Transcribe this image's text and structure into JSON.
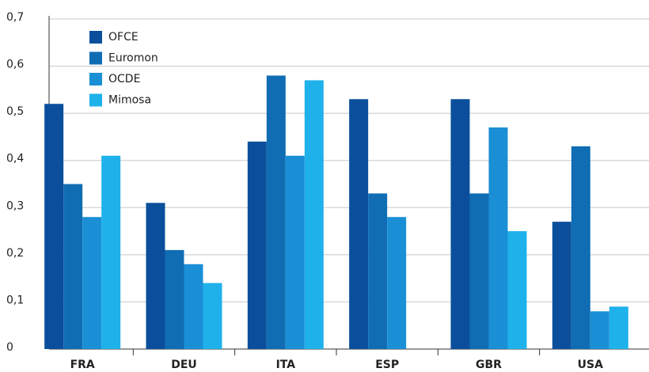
{
  "chart_data": {
    "type": "bar",
    "categories": [
      "FRA",
      "DEU",
      "ITA",
      "ESP",
      "GBR",
      "USA"
    ],
    "series": [
      {
        "name": "OFCE",
        "color": "#0b4f9c",
        "values": [
          0.52,
          0.31,
          0.44,
          0.53,
          0.53,
          0.27
        ]
      },
      {
        "name": "Euromon",
        "color": "#106db4",
        "values": [
          0.35,
          0.21,
          0.58,
          0.33,
          0.33,
          0.43
        ]
      },
      {
        "name": "OCDE",
        "color": "#1a8fd6",
        "values": [
          0.28,
          0.18,
          0.41,
          0.28,
          0.47,
          0.08
        ]
      },
      {
        "name": "Mimosa",
        "color": "#1fb1ea",
        "values": [
          0.41,
          0.14,
          0.57,
          null,
          0.25,
          0.09
        ]
      }
    ],
    "ylim": [
      0,
      0.7
    ],
    "yticks": [
      0,
      {
        "value": 0.1,
        "label": "0,1"
      },
      {
        "value": 0.2,
        "label": "0,2"
      },
      {
        "value": 0.3,
        "label": "0,3"
      },
      {
        "value": 0.4,
        "label": "0,4"
      },
      {
        "value": 0.5,
        "label": "0,5"
      },
      {
        "value": 0.6,
        "label": "0,6"
      },
      {
        "value": 0.7,
        "label": "0,7"
      }
    ],
    "grid": true,
    "legend": "top-left"
  }
}
